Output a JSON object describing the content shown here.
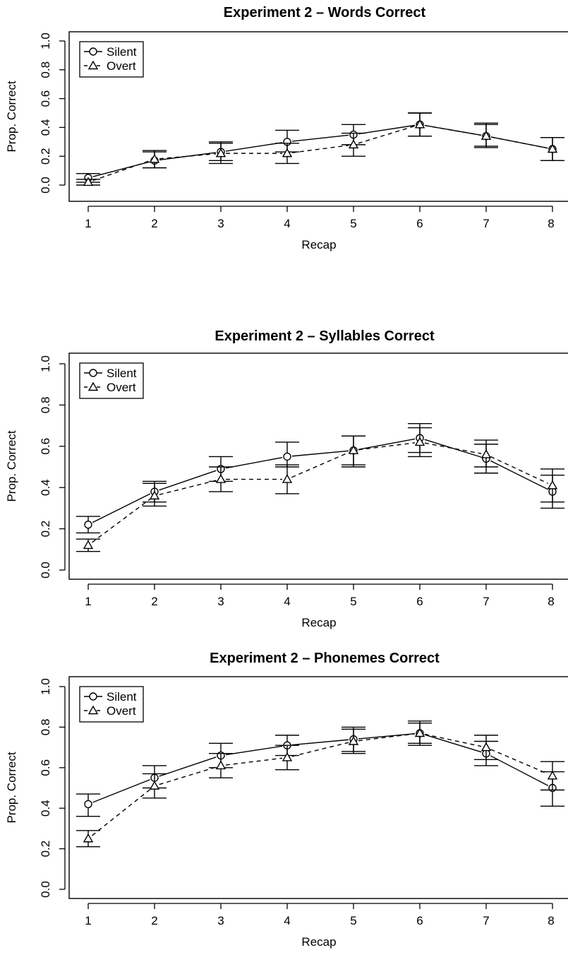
{
  "chart_data": [
    {
      "type": "line",
      "title": "Experiment 2 – Words Correct",
      "xlabel": "Recap",
      "ylabel": "Prop. Correct",
      "x": [
        1,
        2,
        3,
        4,
        5,
        6,
        7,
        8
      ],
      "xticks": [
        "1",
        "2",
        "3",
        "4",
        "5",
        "6",
        "7",
        "8"
      ],
      "yticks": [
        "0.0",
        "0.2",
        "0.4",
        "0.6",
        "0.8",
        "1.0"
      ],
      "ylim": [
        0,
        1
      ],
      "grid": false,
      "legend_position": "top-left",
      "series": [
        {
          "name": "Silent",
          "marker": "circle",
          "line": "solid",
          "values": [
            0.05,
            0.17,
            0.23,
            0.3,
            0.35,
            0.42,
            0.34,
            0.25
          ],
          "err_low": [
            0.02,
            0.12,
            0.17,
            0.23,
            0.28,
            0.34,
            0.27,
            0.17
          ],
          "err_high": [
            0.08,
            0.23,
            0.3,
            0.38,
            0.42,
            0.5,
            0.42,
            0.33
          ]
        },
        {
          "name": "Overt",
          "marker": "triangle",
          "line": "dashed",
          "values": [
            0.02,
            0.18,
            0.22,
            0.22,
            0.28,
            0.42,
            0.34,
            0.25
          ],
          "err_low": [
            0.0,
            0.12,
            0.15,
            0.15,
            0.2,
            0.34,
            0.26,
            0.17
          ],
          "err_high": [
            0.04,
            0.24,
            0.29,
            0.29,
            0.36,
            0.5,
            0.43,
            0.33
          ]
        }
      ]
    },
    {
      "type": "line",
      "title": "Experiment 2 – Syllables Correct",
      "xlabel": "Recap",
      "ylabel": "Prop. Correct",
      "x": [
        1,
        2,
        3,
        4,
        5,
        6,
        7,
        8
      ],
      "xticks": [
        "1",
        "2",
        "3",
        "4",
        "5",
        "6",
        "7",
        "8"
      ],
      "yticks": [
        "0.0",
        "0.2",
        "0.4",
        "0.6",
        "0.8",
        "1.0"
      ],
      "ylim": [
        0,
        1
      ],
      "grid": false,
      "legend_position": "top-left",
      "series": [
        {
          "name": "Silent",
          "marker": "circle",
          "line": "solid",
          "values": [
            0.22,
            0.38,
            0.49,
            0.55,
            0.58,
            0.64,
            0.54,
            0.38
          ],
          "err_low": [
            0.18,
            0.33,
            0.43,
            0.5,
            0.51,
            0.57,
            0.47,
            0.3
          ],
          "err_high": [
            0.26,
            0.43,
            0.55,
            0.62,
            0.65,
            0.71,
            0.61,
            0.46
          ]
        },
        {
          "name": "Overt",
          "marker": "triangle",
          "line": "dashed",
          "values": [
            0.12,
            0.36,
            0.44,
            0.44,
            0.58,
            0.62,
            0.56,
            0.41
          ],
          "err_low": [
            0.09,
            0.31,
            0.38,
            0.37,
            0.5,
            0.55,
            0.5,
            0.33
          ],
          "err_high": [
            0.15,
            0.42,
            0.5,
            0.51,
            0.65,
            0.69,
            0.63,
            0.49
          ]
        }
      ]
    },
    {
      "type": "line",
      "title": "Experiment 2 – Phonemes Correct",
      "xlabel": "Recap",
      "ylabel": "Prop. Correct",
      "x": [
        1,
        2,
        3,
        4,
        5,
        6,
        7,
        8
      ],
      "xticks": [
        "1",
        "2",
        "3",
        "4",
        "5",
        "6",
        "7",
        "8"
      ],
      "yticks": [
        "0.0",
        "0.2",
        "0.4",
        "0.6",
        "0.8",
        "1.0"
      ],
      "ylim": [
        0,
        1
      ],
      "grid": false,
      "legend_position": "top-left",
      "series": [
        {
          "name": "Silent",
          "marker": "circle",
          "line": "solid",
          "values": [
            0.42,
            0.55,
            0.66,
            0.71,
            0.74,
            0.77,
            0.67,
            0.5
          ],
          "err_low": [
            0.36,
            0.5,
            0.6,
            0.66,
            0.68,
            0.71,
            0.61,
            0.41
          ],
          "err_high": [
            0.47,
            0.61,
            0.72,
            0.76,
            0.8,
            0.83,
            0.73,
            0.58
          ]
        },
        {
          "name": "Overt",
          "marker": "triangle",
          "line": "dashed",
          "values": [
            0.25,
            0.51,
            0.61,
            0.65,
            0.73,
            0.77,
            0.7,
            0.56
          ],
          "err_low": [
            0.21,
            0.45,
            0.55,
            0.59,
            0.67,
            0.72,
            0.64,
            0.49
          ],
          "err_high": [
            0.29,
            0.57,
            0.67,
            0.71,
            0.79,
            0.82,
            0.76,
            0.63
          ]
        }
      ]
    }
  ]
}
